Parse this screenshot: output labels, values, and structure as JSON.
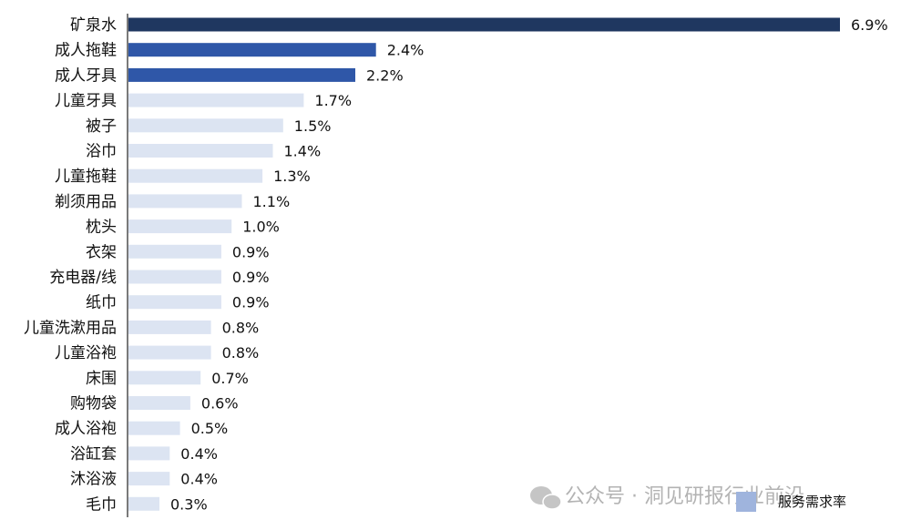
{
  "chart_data": {
    "type": "bar",
    "orientation": "horizontal",
    "categories": [
      "矿泉水",
      "成人拖鞋",
      "成人牙具",
      "儿童牙具",
      "被子",
      "浴巾",
      "儿童拖鞋",
      "剃须用品",
      "枕头",
      "衣架",
      "充电器/线",
      "纸巾",
      "儿童洗漱用品",
      "儿童浴袍",
      "床围",
      "购物袋",
      "成人浴袍",
      "浴缸套",
      "沐浴液",
      "毛巾"
    ],
    "values": [
      6.9,
      2.4,
      2.2,
      1.7,
      1.5,
      1.4,
      1.3,
      1.1,
      1.0,
      0.9,
      0.9,
      0.9,
      0.8,
      0.8,
      0.7,
      0.6,
      0.5,
      0.4,
      0.4,
      0.3
    ],
    "value_labels": [
      "6.9%",
      "2.4%",
      "2.2%",
      "1.7%",
      "1.5%",
      "1.4%",
      "1.3%",
      "1.1%",
      "1.0%",
      "0.9%",
      "0.9%",
      "0.9%",
      "0.8%",
      "0.8%",
      "0.7%",
      "0.6%",
      "0.5%",
      "0.4%",
      "0.4%",
      "0.3%"
    ],
    "colors": [
      "#1f3760",
      "#2f57a8",
      "#2f57a8",
      "#dce4f2",
      "#dce4f2",
      "#dce4f2",
      "#dce4f2",
      "#dce4f2",
      "#dce4f2",
      "#dce4f2",
      "#dce4f2",
      "#dce4f2",
      "#dce4f2",
      "#dce4f2",
      "#dce4f2",
      "#dce4f2",
      "#dce4f2",
      "#dce4f2",
      "#dce4f2",
      "#dce4f2"
    ],
    "series": [
      {
        "name": "服务需求率"
      }
    ],
    "legend_position": "bottom-right",
    "xlim": [
      0,
      6.9
    ],
    "grid": false
  },
  "legend": {
    "label": "服务需求率",
    "swatch_color": "#9fb4dd"
  },
  "watermark": {
    "text": "公众号 · 洞见研报行业前沿",
    "icon": "wechat-icon"
  }
}
